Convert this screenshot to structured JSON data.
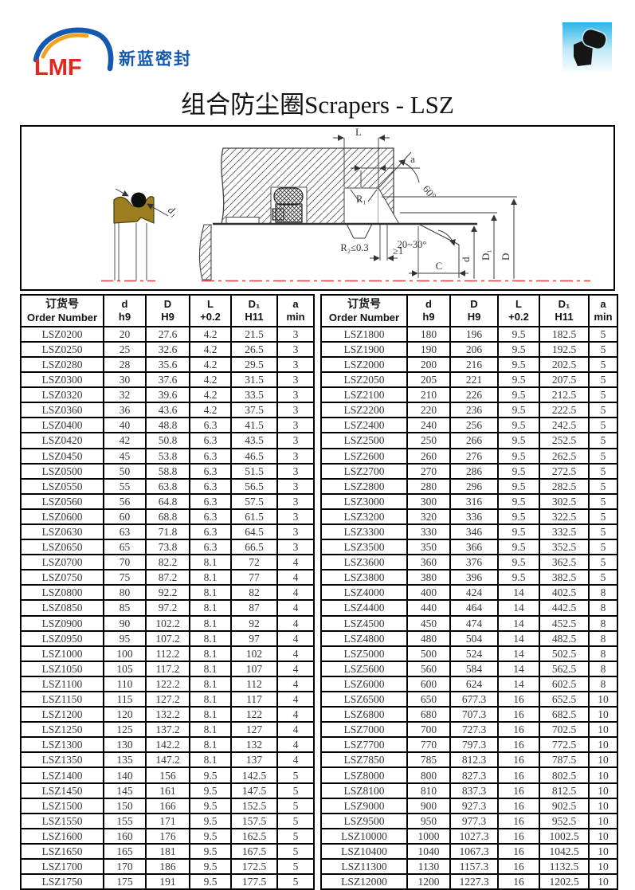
{
  "header": {
    "logo_text": "LMF",
    "company_name": "新蓝密封",
    "logo_red": "#e8251a",
    "logo_blue": "#1558b0",
    "logo_orange": "#f2a21f",
    "icon_name": "seal-profile-icon"
  },
  "title": "组合防尘圈Scrapers - LSZ",
  "diagram": {
    "seal_color": "#9c7d1f",
    "centerline_color": "#e04038",
    "labels": {
      "d1": "d₁",
      "L": "L",
      "a": "a",
      "angle60": "60°",
      "R1": "R₁",
      "R2": "R₂≤0.3",
      "ge1": "≥1",
      "angle2030": "20~30°",
      "C": "C",
      "d": "d",
      "D1": "D₁",
      "D": "D"
    }
  },
  "table": {
    "headers": [
      {
        "line1": "订货号",
        "line2": "Order Number"
      },
      {
        "line1": "d",
        "line2": "h9"
      },
      {
        "line1": "D",
        "line2": "H9"
      },
      {
        "line1": "L",
        "line2": "+0.2"
      },
      {
        "line1": "D₁",
        "line2": "H11"
      },
      {
        "line1": "a",
        "line2": "min"
      }
    ],
    "left_rows": [
      [
        "LSZ0200",
        "20",
        "27.6",
        "4.2",
        "21.5",
        "3"
      ],
      [
        "LSZ0250",
        "25",
        "32.6",
        "4.2",
        "26.5",
        "3"
      ],
      [
        "LSZ0280",
        "28",
        "35.6",
        "4.2",
        "29.5",
        "3"
      ],
      [
        "LSZ0300",
        "30",
        "37.6",
        "4.2",
        "31.5",
        "3"
      ],
      [
        "LSZ0320",
        "32",
        "39.6",
        "4.2",
        "33.5",
        "3"
      ],
      [
        "LSZ0360",
        "36",
        "43.6",
        "4.2",
        "37.5",
        "3"
      ],
      [
        "LSZ0400",
        "40",
        "48.8",
        "6.3",
        "41.5",
        "3"
      ],
      [
        "LSZ0420",
        "42",
        "50.8",
        "6.3",
        "43.5",
        "3"
      ],
      [
        "LSZ0450",
        "45",
        "53.8",
        "6.3",
        "46.5",
        "3"
      ],
      [
        "LSZ0500",
        "50",
        "58.8",
        "6.3",
        "51.5",
        "3"
      ],
      [
        "LSZ0550",
        "55",
        "63.8",
        "6.3",
        "56.5",
        "3"
      ],
      [
        "LSZ0560",
        "56",
        "64.8",
        "6.3",
        "57.5",
        "3"
      ],
      [
        "LSZ0600",
        "60",
        "68.8",
        "6.3",
        "61.5",
        "3"
      ],
      [
        "LSZ0630",
        "63",
        "71.8",
        "6.3",
        "64.5",
        "3"
      ],
      [
        "LSZ0650",
        "65",
        "73.8",
        "6.3",
        "66.5",
        "3"
      ],
      [
        "LSZ0700",
        "70",
        "82.2",
        "8.1",
        "72",
        "4"
      ],
      [
        "LSZ0750",
        "75",
        "87.2",
        "8.1",
        "77",
        "4"
      ],
      [
        "LSZ0800",
        "80",
        "92.2",
        "8.1",
        "82",
        "4"
      ],
      [
        "LSZ0850",
        "85",
        "97.2",
        "8.1",
        "87",
        "4"
      ],
      [
        "LSZ0900",
        "90",
        "102.2",
        "8.1",
        "92",
        "4"
      ],
      [
        "LSZ0950",
        "95",
        "107.2",
        "8.1",
        "97",
        "4"
      ],
      [
        "LSZ1000",
        "100",
        "112.2",
        "8.1",
        "102",
        "4"
      ],
      [
        "LSZ1050",
        "105",
        "117.2",
        "8.1",
        "107",
        "4"
      ],
      [
        "LSZ1100",
        "110",
        "122.2",
        "8.1",
        "112",
        "4"
      ],
      [
        "LSZ1150",
        "115",
        "127.2",
        "8.1",
        "117",
        "4"
      ],
      [
        "LSZ1200",
        "120",
        "132.2",
        "8.1",
        "122",
        "4"
      ],
      [
        "LSZ1250",
        "125",
        "137.2",
        "8.1",
        "127",
        "4"
      ],
      [
        "LSZ1300",
        "130",
        "142.2",
        "8.1",
        "132",
        "4"
      ],
      [
        "LSZ1350",
        "135",
        "147.2",
        "8.1",
        "137",
        "4"
      ],
      [
        "LSZ1400",
        "140",
        "156",
        "9.5",
        "142.5",
        "5"
      ],
      [
        "LSZ1450",
        "145",
        "161",
        "9.5",
        "147.5",
        "5"
      ],
      [
        "LSZ1500",
        "150",
        "166",
        "9.5",
        "152.5",
        "5"
      ],
      [
        "LSZ1550",
        "155",
        "171",
        "9.5",
        "157.5",
        "5"
      ],
      [
        "LSZ1600",
        "160",
        "176",
        "9.5",
        "162.5",
        "5"
      ],
      [
        "LSZ1650",
        "165",
        "181",
        "9.5",
        "167.5",
        "5"
      ],
      [
        "LSZ1700",
        "170",
        "186",
        "9.5",
        "172.5",
        "5"
      ],
      [
        "LSZ1750",
        "175",
        "191",
        "9.5",
        "177.5",
        "5"
      ]
    ],
    "right_rows": [
      [
        "LSZ1800",
        "180",
        "196",
        "9.5",
        "182.5",
        "5"
      ],
      [
        "LSZ1900",
        "190",
        "206",
        "9.5",
        "192.5",
        "5"
      ],
      [
        "LSZ2000",
        "200",
        "216",
        "9.5",
        "202.5",
        "5"
      ],
      [
        "LSZ2050",
        "205",
        "221",
        "9.5",
        "207.5",
        "5"
      ],
      [
        "LSZ2100",
        "210",
        "226",
        "9.5",
        "212.5",
        "5"
      ],
      [
        "LSZ2200",
        "220",
        "236",
        "9.5",
        "222.5",
        "5"
      ],
      [
        "LSZ2400",
        "240",
        "256",
        "9.5",
        "242.5",
        "5"
      ],
      [
        "LSZ2500",
        "250",
        "266",
        "9.5",
        "252.5",
        "5"
      ],
      [
        "LSZ2600",
        "260",
        "276",
        "9.5",
        "262.5",
        "5"
      ],
      [
        "LSZ2700",
        "270",
        "286",
        "9.5",
        "272.5",
        "5"
      ],
      [
        "LSZ2800",
        "280",
        "296",
        "9.5",
        "282.5",
        "5"
      ],
      [
        "LSZ3000",
        "300",
        "316",
        "9.5",
        "302.5",
        "5"
      ],
      [
        "LSZ3200",
        "320",
        "336",
        "9.5",
        "322.5",
        "5"
      ],
      [
        "LSZ3300",
        "330",
        "346",
        "9.5",
        "332.5",
        "5"
      ],
      [
        "LSZ3500",
        "350",
        "366",
        "9.5",
        "352.5",
        "5"
      ],
      [
        "LSZ3600",
        "360",
        "376",
        "9.5",
        "362.5",
        "5"
      ],
      [
        "LSZ3800",
        "380",
        "396",
        "9.5",
        "382.5",
        "5"
      ],
      [
        "LSZ4000",
        "400",
        "424",
        "14",
        "402.5",
        "8"
      ],
      [
        "LSZ4400",
        "440",
        "464",
        "14",
        "442.5",
        "8"
      ],
      [
        "LSZ4500",
        "450",
        "474",
        "14",
        "452.5",
        "8"
      ],
      [
        "LSZ4800",
        "480",
        "504",
        "14",
        "482.5",
        "8"
      ],
      [
        "LSZ5000",
        "500",
        "524",
        "14",
        "502.5",
        "8"
      ],
      [
        "LSZ5600",
        "560",
        "584",
        "14",
        "562.5",
        "8"
      ],
      [
        "LSZ6000",
        "600",
        "624",
        "14",
        "602.5",
        "8"
      ],
      [
        "LSZ6500",
        "650",
        "677.3",
        "16",
        "652.5",
        "10"
      ],
      [
        "LSZ6800",
        "680",
        "707.3",
        "16",
        "682.5",
        "10"
      ],
      [
        "LSZ7000",
        "700",
        "727.3",
        "16",
        "702.5",
        "10"
      ],
      [
        "LSZ7700",
        "770",
        "797.3",
        "16",
        "772.5",
        "10"
      ],
      [
        "LSZ7850",
        "785",
        "812.3",
        "16",
        "787.5",
        "10"
      ],
      [
        "LSZ8000",
        "800",
        "827.3",
        "16",
        "802.5",
        "10"
      ],
      [
        "LSZ8100",
        "810",
        "837.3",
        "16",
        "812.5",
        "10"
      ],
      [
        "LSZ9000",
        "900",
        "927.3",
        "16",
        "902.5",
        "10"
      ],
      [
        "LSZ9500",
        "950",
        "977.3",
        "16",
        "952.5",
        "10"
      ],
      [
        "LSZ10000",
        "1000",
        "1027.3",
        "16",
        "1002.5",
        "10"
      ],
      [
        "LSZ10400",
        "1040",
        "1067.3",
        "16",
        "1042.5",
        "10"
      ],
      [
        "LSZ11300",
        "1130",
        "1157.3",
        "16",
        "1132.5",
        "10"
      ],
      [
        "LSZ12000",
        "1200",
        "1227.3",
        "16",
        "1202.5",
        "10"
      ]
    ]
  }
}
